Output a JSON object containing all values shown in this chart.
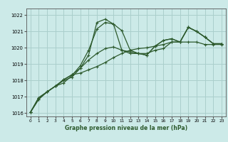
{
  "title": "Graphe pression niveau de la mer (hPa)",
  "bg_color": "#cceae8",
  "grid_color": "#aacfcc",
  "line_color": "#2d5a2d",
  "ylim": [
    1015.8,
    1022.4
  ],
  "xlim": [
    -0.5,
    23.5
  ],
  "yticks": [
    1016,
    1017,
    1018,
    1019,
    1020,
    1021,
    1022
  ],
  "xticks": [
    0,
    1,
    2,
    3,
    4,
    5,
    6,
    7,
    8,
    9,
    10,
    11,
    12,
    13,
    14,
    15,
    16,
    17,
    18,
    19,
    20,
    21,
    22,
    23
  ],
  "series": [
    [
      1016.05,
      1016.85,
      1017.3,
      1017.65,
      1017.85,
      1018.3,
      1018.9,
      1019.85,
      1021.15,
      1021.55,
      1021.45,
      1021.05,
      1019.85,
      1019.65,
      1019.55,
      1020.1,
      1020.45,
      1020.55,
      1020.35,
      1021.25,
      1021.0,
      1020.65,
      1020.25,
      1020.25
    ],
    [
      1016.05,
      1016.85,
      1017.3,
      1017.65,
      1018.0,
      1018.2,
      1018.75,
      1019.55,
      1021.55,
      1021.75,
      1021.45,
      1019.85,
      1019.65,
      1019.65,
      1019.55,
      1020.1,
      1020.45,
      1020.55,
      1020.35,
      1021.25,
      1021.0,
      1020.65,
      1020.25,
      1020.25
    ],
    [
      1016.05,
      1016.95,
      1017.3,
      1017.65,
      1018.05,
      1018.35,
      1018.45,
      1018.65,
      1018.85,
      1019.1,
      1019.4,
      1019.65,
      1019.85,
      1019.95,
      1020.0,
      1020.1,
      1020.2,
      1020.35,
      1020.35,
      1020.35,
      1020.35,
      1020.2,
      1020.2,
      1020.2
    ],
    [
      1016.05,
      1016.95,
      1017.3,
      1017.65,
      1018.05,
      1018.35,
      1018.75,
      1019.25,
      1019.65,
      1019.95,
      1020.05,
      1019.85,
      1019.75,
      1019.65,
      1019.65,
      1019.85,
      1019.95,
      1020.35,
      1020.35,
      1021.25,
      1021.0,
      1020.65,
      1020.25,
      1020.25
    ]
  ]
}
